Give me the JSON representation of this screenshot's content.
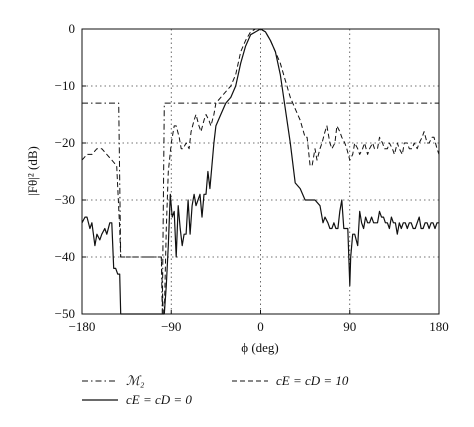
{
  "chart_data": {
    "type": "line",
    "xlabel": "ϕ (deg)",
    "ylabel": "|Fθ|² (dB)",
    "xlim": [
      -180,
      180
    ],
    "ylim": [
      -50,
      0
    ],
    "xticks": [
      -180,
      -90,
      0,
      90,
      180
    ],
    "yticks": [
      0,
      -10,
      -20,
      -30,
      -40,
      -50
    ],
    "xtick_labels": [
      "−180",
      "−90",
      "0",
      "90",
      "180"
    ],
    "ytick_labels": [
      "0",
      "−10",
      "−20",
      "−30",
      "−40",
      "−50"
    ],
    "grid": true,
    "legend": {
      "position": "bottom",
      "entries": [
        {
          "label": "ℳ₂",
          "style": "dash-dot"
        },
        {
          "label": "cE = cD = 10",
          "style": "dashed"
        },
        {
          "label": "cE = cD = 0",
          "style": "solid"
        }
      ]
    },
    "series": [
      {
        "name": "ℳ₂",
        "style": "dash-dot",
        "x": [
          -180,
          -143,
          -141,
          -140,
          -100,
          -99,
          -97,
          180
        ],
        "y": [
          -13,
          -13,
          -40,
          -40,
          -40,
          -50,
          -13,
          -13
        ]
      },
      {
        "name": "cE = cD = 10",
        "style": "dashed",
        "x": [
          -180,
          -175,
          -170,
          -165,
          -160,
          -155,
          -150,
          -145,
          -142,
          -141,
          -140,
          -120,
          -100,
          -98,
          -97,
          -95,
          -93,
          -90,
          -87,
          -85,
          -82,
          -80,
          -78,
          -75,
          -72,
          -70,
          -67,
          -65,
          -62,
          -60,
          -57,
          -55,
          -52,
          -50,
          -47,
          -45,
          -40,
          -35,
          -30,
          -25,
          -20,
          -15,
          -10,
          -5,
          0,
          5,
          10,
          15,
          20,
          25,
          30,
          35,
          40,
          45,
          47,
          50,
          52,
          55,
          57,
          60,
          62,
          65,
          67,
          70,
          72,
          75,
          77,
          80,
          82,
          85,
          87,
          90,
          93,
          95,
          98,
          100,
          103,
          105,
          108,
          110,
          113,
          115,
          118,
          120,
          123,
          125,
          128,
          130,
          133,
          135,
          138,
          140,
          143,
          145,
          148,
          150,
          153,
          155,
          158,
          160,
          163,
          165,
          168,
          170,
          173,
          175,
          178,
          180
        ],
        "y": [
          -23,
          -22,
          -22,
          -21,
          -21,
          -22,
          -23,
          -24,
          -35,
          -40,
          -40,
          -40,
          -40,
          -50,
          -50,
          -35,
          -25,
          -20,
          -17,
          -17,
          -19,
          -21,
          -21,
          -20,
          -21,
          -18,
          -16,
          -15,
          -17,
          -18,
          -16,
          -15,
          -16,
          -17,
          -15,
          -13,
          -12,
          -11,
          -10,
          -8,
          -4,
          -2,
          -0.5,
          0,
          0,
          -0.5,
          -2,
          -4,
          -6,
          -9,
          -12,
          -14,
          -16,
          -19,
          -19,
          -24,
          -24,
          -21,
          -23,
          -21,
          -20,
          -18,
          -17,
          -20,
          -21,
          -20,
          -17,
          -18,
          -19,
          -20,
          -21,
          -23,
          -22,
          -20,
          -21,
          -22,
          -21,
          -20,
          -22,
          -21,
          -20,
          -21,
          -21,
          -19,
          -20,
          -21,
          -21,
          -20,
          -21,
          -22,
          -20,
          -21,
          -22,
          -20,
          -20,
          -21,
          -21,
          -20,
          -21,
          -20,
          -19,
          -18,
          -20,
          -20,
          -19,
          -19,
          -21,
          -22
        ]
      },
      {
        "name": "cE = cD = 0",
        "style": "solid",
        "x": [
          -180,
          -177,
          -175,
          -172,
          -170,
          -167,
          -165,
          -162,
          -160,
          -157,
          -155,
          -152,
          -150,
          -148,
          -146,
          -144,
          -142,
          -141,
          -140,
          -130,
          -100,
          -99,
          -98,
          -97,
          -95,
          -93,
          -91,
          -89,
          -87,
          -85,
          -83,
          -81,
          -79,
          -77,
          -75,
          -73,
          -71,
          -69,
          -67,
          -65,
          -63,
          -61,
          -59,
          -57,
          -55,
          -53,
          -51,
          -49,
          -47,
          -45,
          -40,
          -35,
          -30,
          -25,
          -20,
          -15,
          -10,
          -5,
          0,
          5,
          10,
          15,
          20,
          25,
          30,
          35,
          40,
          45,
          50,
          55,
          60,
          63,
          65,
          68,
          70,
          72,
          74,
          76,
          78,
          80,
          82,
          84,
          86,
          88,
          89,
          90,
          91,
          93,
          95,
          98,
          100,
          102,
          104,
          106,
          108,
          110,
          112,
          114,
          116,
          118,
          120,
          122,
          124,
          126,
          128,
          130,
          132,
          134,
          136,
          138,
          140,
          142,
          144,
          146,
          148,
          150,
          152,
          154,
          156,
          158,
          160,
          162,
          164,
          166,
          168,
          170,
          172,
          174,
          176,
          178,
          180
        ],
        "y": [
          -34,
          -33,
          -33,
          -35,
          -34,
          -38,
          -36,
          -37,
          -36,
          -35,
          -36,
          -34,
          -34,
          -42,
          -42,
          -43,
          -43,
          -50,
          -50,
          -50,
          -50,
          -50,
          -50,
          -50,
          -45,
          -38,
          -29,
          -33,
          -32,
          -40,
          -31,
          -35,
          -38,
          -36,
          -36,
          -30,
          -36,
          -31,
          -29,
          -31,
          -30,
          -29,
          -33,
          -29,
          -29,
          -25,
          -28,
          -24,
          -20,
          -17,
          -15,
          -13,
          -12,
          -10,
          -6,
          -3,
          -1,
          -0.5,
          0,
          -0.5,
          -2,
          -4,
          -8,
          -14,
          -20,
          -27,
          -28,
          -30,
          -30,
          -30,
          -31,
          -34,
          -33,
          -34,
          -35,
          -35,
          -34,
          -35,
          -35,
          -32,
          -30,
          -35,
          -35,
          -35,
          -40,
          -45,
          -40,
          -36,
          -36,
          -38,
          -32,
          -34,
          -35,
          -33,
          -34,
          -34,
          -33,
          -34,
          -34,
          -34,
          -32,
          -33,
          -33,
          -34,
          -34,
          -35,
          -33,
          -34,
          -34,
          -36,
          -34,
          -35,
          -34,
          -34,
          -35,
          -34,
          -34,
          -35,
          -35,
          -34,
          -33,
          -35,
          -35,
          -34,
          -34,
          -35,
          -34,
          -34,
          -35,
          -34,
          -34
        ]
      }
    ]
  }
}
